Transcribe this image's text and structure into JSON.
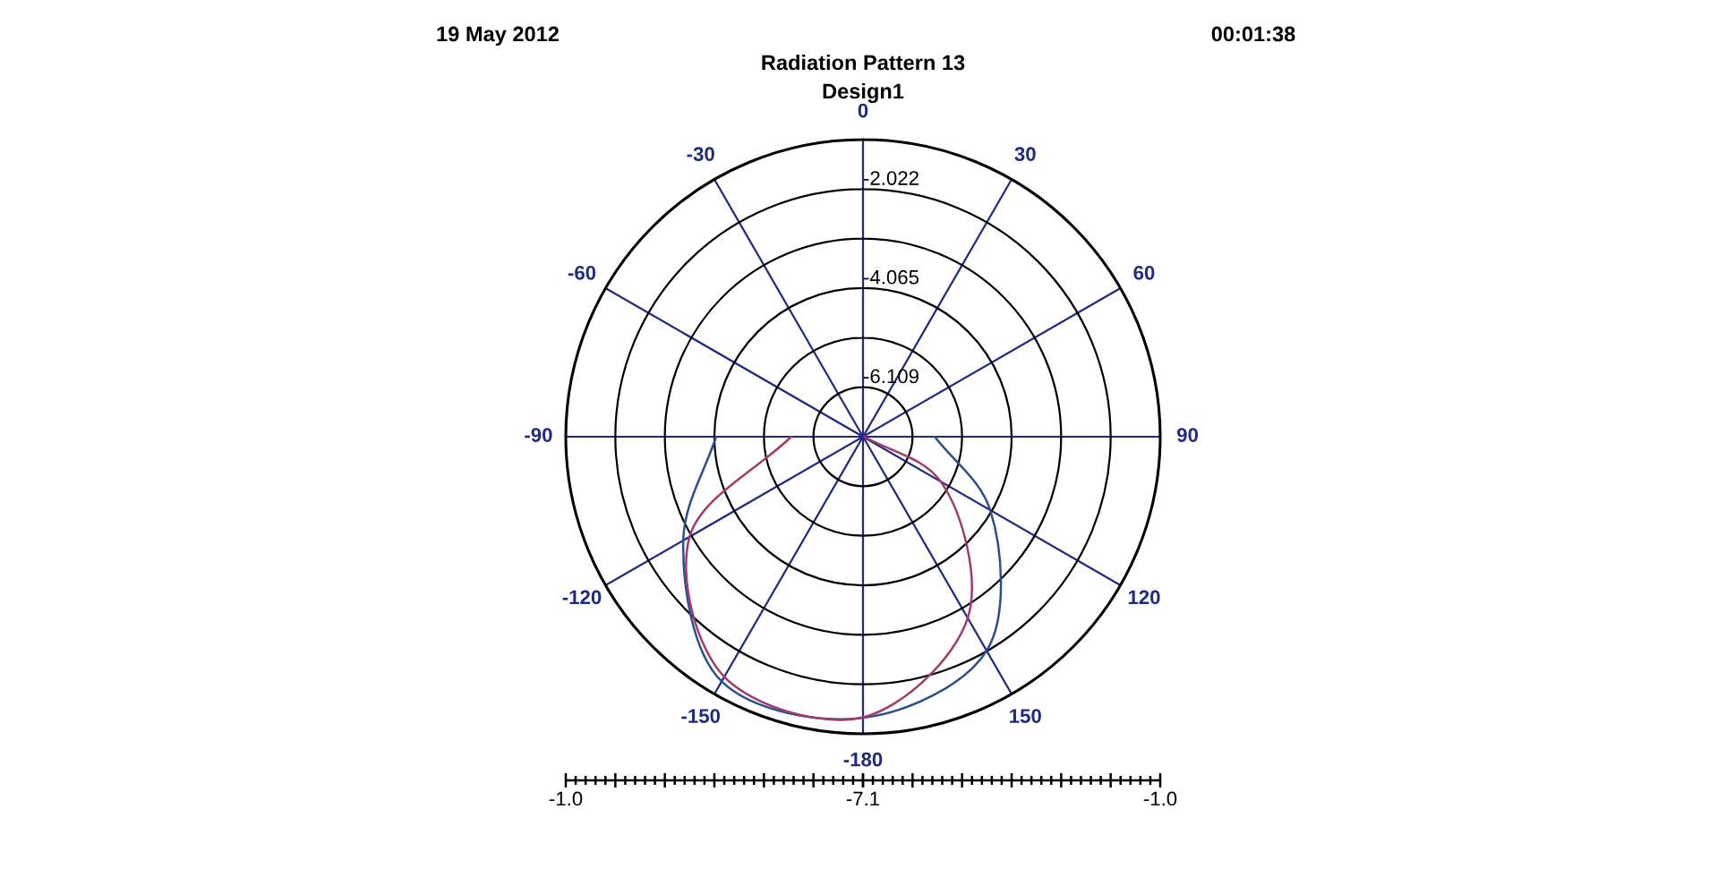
{
  "chart_data": {
    "type": "radar",
    "title": "Radiation Pattern 13",
    "subtitle": "Design1",
    "annotations": [
      "19 May 2012",
      "00:01:38",
      "-1.0",
      "-7.1",
      "-1.0"
    ],
    "categories": [
      "0",
      "30",
      "60",
      "90",
      "120",
      "150",
      "-180",
      "-150",
      "-120",
      "-90",
      "-60",
      "-30"
    ],
    "series": [
      {
        "color": "#2a4f8f",
        "values": [
          null,
          null,
          null,
          -5.65,
          -4.1,
          -2.03,
          -1.33,
          -1.3,
          -2.85,
          -4.1,
          null,
          null
        ]
      },
      {
        "color": "#a33a6e",
        "values": [
          null,
          null,
          null,
          -7.1,
          -5.28,
          -2.81,
          -1.34,
          -1.41,
          -3.0,
          -5.65,
          null,
          null
        ]
      }
    ],
    "ylim": [
      -7.131,
      -1.0
    ],
    "yticks": [
      -6.109,
      -4.065,
      -2.022
    ],
    "grid": true,
    "line_style": "solid"
  }
}
